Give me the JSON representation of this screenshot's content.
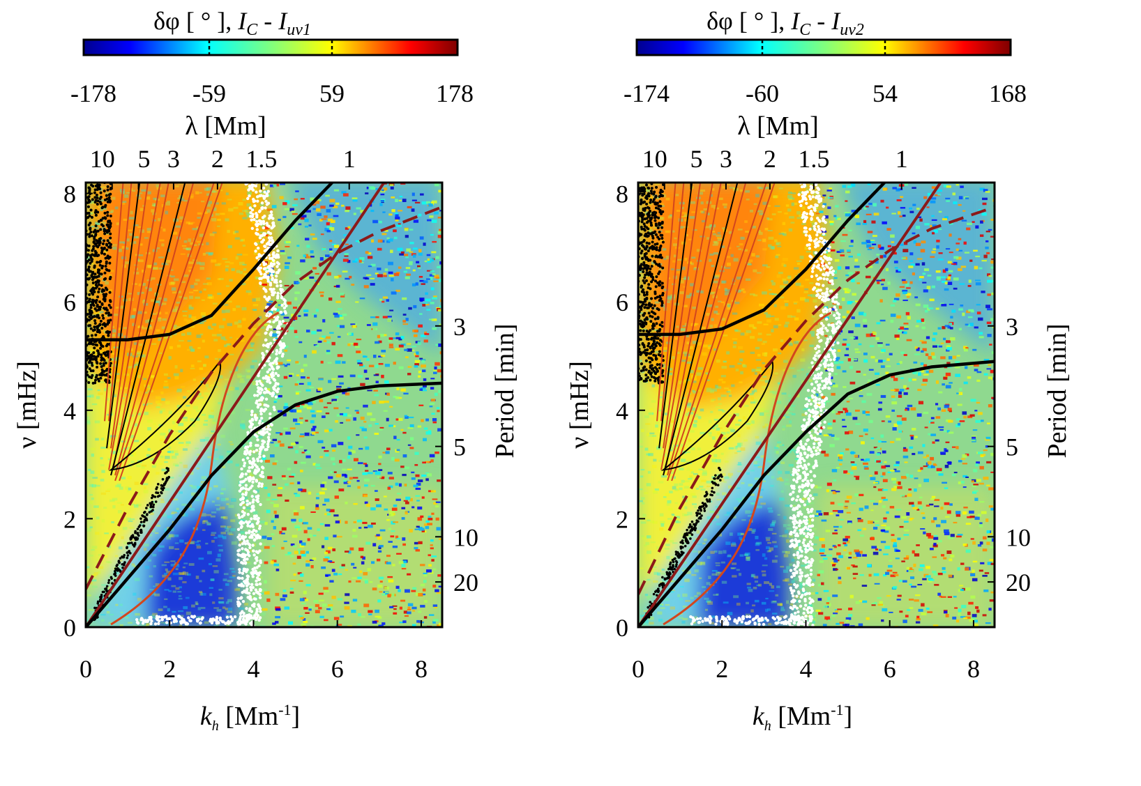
{
  "chart_data": [
    {
      "type": "heatmap",
      "panel": "left",
      "colorbar": {
        "title_prefix": "δφ [ ° ],",
        "title_I": "I",
        "title_sub_c": "C",
        "title_dash": " - ",
        "title_sub_uv": "uv1",
        "ticks": [
          "-178",
          "-59",
          "59",
          "178"
        ],
        "range": [
          -178,
          178
        ]
      },
      "xlabel_k": "k",
      "xlabel_sub": "h",
      "xlabel_unit": "[Mm",
      "xlabel_exp": "-1",
      "xlabel_close": "]",
      "ylabel": "ν [mHz]",
      "y2label": "Period [min]",
      "toplabel": "λ [Mm]",
      "xlim": [
        0,
        8.5
      ],
      "ylim": [
        0,
        8.2
      ],
      "xticks": [
        "0",
        "2",
        "4",
        "6",
        "8"
      ],
      "yticks": [
        "0",
        "2",
        "4",
        "6",
        "8"
      ],
      "top_ticks": [
        {
          "label": "10",
          "lambda": 10
        },
        {
          "label": "5",
          "lambda": 5
        },
        {
          "label": "3",
          "lambda": 3
        },
        {
          "label": "2",
          "lambda": 2
        },
        {
          "label": "1.5",
          "lambda": 1.5
        },
        {
          "label": "1",
          "lambda": 1
        }
      ],
      "period_ticks": [
        {
          "label": "3",
          "period_min": 3
        },
        {
          "label": "5",
          "period_min": 5
        },
        {
          "label": "10",
          "period_min": 10
        },
        {
          "label": "20",
          "period_min": 20
        }
      ],
      "curves": {
        "upper_black": [
          [
            0,
            5.3
          ],
          [
            1,
            5.3
          ],
          [
            2,
            5.4
          ],
          [
            3,
            5.75
          ],
          [
            4,
            6.6
          ],
          [
            5,
            7.5
          ],
          [
            6,
            8.3
          ]
        ],
        "lower_black": [
          [
            0,
            0
          ],
          [
            1,
            0.9
          ],
          [
            2,
            1.8
          ],
          [
            3,
            2.8
          ],
          [
            4,
            3.6
          ],
          [
            5,
            4.1
          ],
          [
            6,
            4.35
          ],
          [
            7,
            4.45
          ],
          [
            8.5,
            4.5
          ]
        ],
        "solid_red": [
          [
            0,
            0
          ],
          [
            7.2,
            8.3
          ]
        ],
        "dashed_red": [
          [
            0,
            0.7
          ],
          [
            1,
            2.2
          ],
          [
            2,
            3.55
          ],
          [
            3,
            4.7
          ],
          [
            4,
            5.6
          ],
          [
            5,
            6.35
          ],
          [
            6,
            6.9
          ],
          [
            7,
            7.3
          ],
          [
            8.5,
            7.75
          ]
        ]
      }
    },
    {
      "type": "heatmap",
      "panel": "right",
      "colorbar": {
        "title_prefix": "δφ [ ° ],",
        "title_I": "I",
        "title_sub_c": "C",
        "title_dash": " - ",
        "title_sub_uv": "uv2",
        "ticks": [
          "-174",
          "-60",
          "54",
          "168"
        ],
        "range": [
          -174,
          168
        ]
      },
      "xlabel_k": "k",
      "xlabel_sub": "h",
      "xlabel_unit": "[Mm",
      "xlabel_exp": "-1",
      "xlabel_close": "]",
      "ylabel": "ν [mHz]",
      "y2label": "Period [min]",
      "toplabel": "λ [Mm]",
      "xlim": [
        0,
        8.5
      ],
      "ylim": [
        0,
        8.2
      ],
      "xticks": [
        "0",
        "2",
        "4",
        "6",
        "8"
      ],
      "yticks": [
        "0",
        "2",
        "4",
        "6",
        "8"
      ],
      "top_ticks": [
        {
          "label": "10",
          "lambda": 10
        },
        {
          "label": "5",
          "lambda": 5
        },
        {
          "label": "3",
          "lambda": 3
        },
        {
          "label": "2",
          "lambda": 2
        },
        {
          "label": "1.5",
          "lambda": 1.5
        },
        {
          "label": "1",
          "lambda": 1
        }
      ],
      "period_ticks": [
        {
          "label": "3",
          "period_min": 3
        },
        {
          "label": "5",
          "period_min": 5
        },
        {
          "label": "10",
          "period_min": 10
        },
        {
          "label": "20",
          "period_min": 20
        }
      ],
      "curves": {
        "upper_black": [
          [
            0,
            5.4
          ],
          [
            1,
            5.4
          ],
          [
            2,
            5.5
          ],
          [
            3,
            5.85
          ],
          [
            4,
            6.6
          ],
          [
            5,
            7.5
          ],
          [
            6,
            8.3
          ]
        ],
        "lower_black": [
          [
            0,
            0
          ],
          [
            1,
            0.9
          ],
          [
            2,
            1.8
          ],
          [
            3,
            2.8
          ],
          [
            4,
            3.6
          ],
          [
            5,
            4.3
          ],
          [
            6,
            4.65
          ],
          [
            7,
            4.8
          ],
          [
            8.5,
            4.9
          ]
        ],
        "solid_red": [
          [
            0,
            0
          ],
          [
            7.3,
            8.3
          ]
        ],
        "dashed_red": [
          [
            0,
            0.6
          ],
          [
            1,
            2.2
          ],
          [
            2,
            3.55
          ],
          [
            3,
            4.75
          ],
          [
            4,
            5.65
          ],
          [
            5,
            6.4
          ],
          [
            6,
            6.95
          ],
          [
            7,
            7.35
          ],
          [
            8.5,
            7.75
          ]
        ]
      }
    }
  ],
  "colors": {
    "black_curve": "#000000",
    "red_curve": "#8b1a1a",
    "contour_orange": "#d2461e",
    "white_band": "#ffffff"
  }
}
